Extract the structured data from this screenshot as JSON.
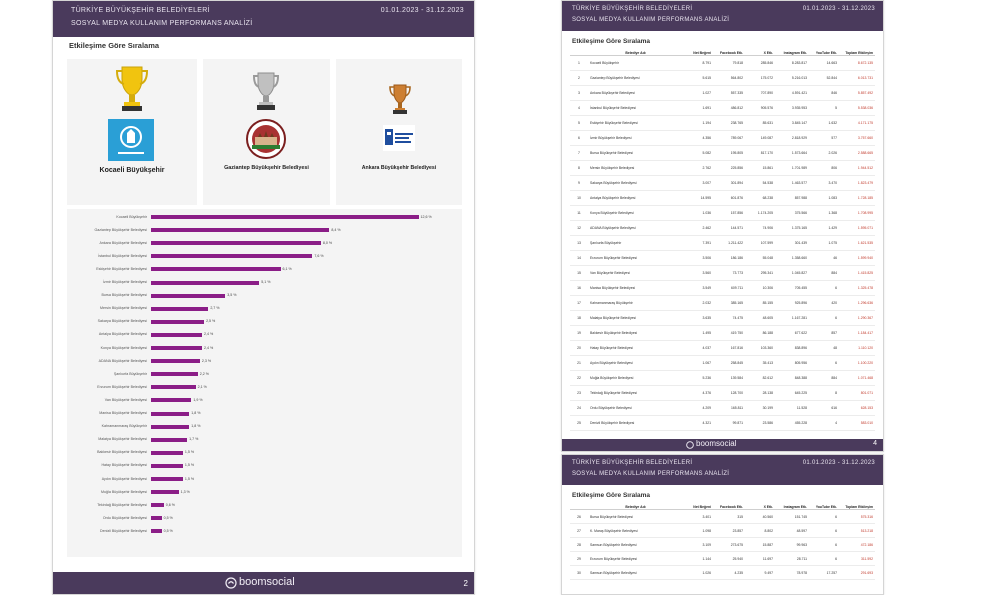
{
  "report": {
    "title": "TÜRKİYE BÜYÜKŞEHİR BELEDİYELERİ",
    "subtitle": "SOSYAL MEDYA KULLANIM PERFORMANS ANALİZİ",
    "date_range": "01.01.2023 - 31.12.2023",
    "section_title": "Etkileşime Göre Sıralama",
    "brand": "boomsocial"
  },
  "left_page": {
    "page_number": "2",
    "podium": [
      {
        "rank": 1,
        "name": "Kocaeli Büyükşehir",
        "trophy": "gold-trophy-icon"
      },
      {
        "rank": 2,
        "name": "Gaziantep Büyükşehir Belediyesi",
        "trophy": "silver-trophy-icon"
      },
      {
        "rank": 3,
        "name": "Ankara Büyükşehir Belediyesi",
        "trophy": "bronze-trophy-icon"
      }
    ]
  },
  "chart_data": {
    "type": "bar",
    "orientation": "horizontal",
    "title": "Etkileşime Göre Sıralama",
    "categories": [
      "Kocaeli Büyükşehir",
      "Gaziantep Büyükşehir Belediyesi",
      "Ankara Büyükşehir Belediyesi",
      "İstanbul Büyükşehir Belediyesi",
      "Eskişehir Büyükşehir Belediyesi",
      "İzmir Büyükşehir Belediyesi",
      "Bursa Büyükşehir Belediyesi",
      "Mersin Büyükşehir Belediyesi",
      "Sakarya Büyükşehir Belediyesi",
      "Antalya Büyükşehir Belediyesi",
      "Konya Büyükşehir Belediyesi",
      "ADANA Büyükşehir Belediyesi",
      "Şanlıurfa Büyükşehir",
      "Erzurum Büyükşehir Belediyesi",
      "Van Büyükşehir Belediyesi",
      "Manisa Büyükşehir Belediyesi",
      "Kahramanmaraş Büyükşehir",
      "Malatya Büyükşehir Belediyesi",
      "Balıkesir Büyükşehir Belediyesi",
      "Hatay Büyükşehir Belediyesi",
      "Aydın Büyükşehir Belediyesi",
      "Muğla Büyükşehir Belediyesi",
      "Tekirdağ Büyükşehir Belediyesi",
      "Ordu Büyükşehir Belediyesi",
      "Denizli Büyükşehir Belediyesi"
    ],
    "values": [
      12.6,
      8.4,
      8.0,
      7.6,
      6.1,
      5.1,
      3.5,
      2.7,
      2.5,
      2.4,
      2.4,
      2.3,
      2.2,
      2.1,
      1.9,
      1.8,
      1.8,
      1.7,
      1.5,
      1.5,
      1.5,
      1.3,
      0.6,
      0.5,
      0.5
    ],
    "value_labels": [
      "12,6 %",
      "8,4 %",
      "8,0 %",
      "7,6 %",
      "6,1 %",
      "5,1 %",
      "3,5 %",
      "2,7 %",
      "2,5 %",
      "2,4 %",
      "2,4 %",
      "2,3 %",
      "2,2 %",
      "2,1 %",
      "1,9 %",
      "1,8 %",
      "1,8 %",
      "1,7 %",
      "1,5 %",
      "1,5 %",
      "1,5 %",
      "1,3 %",
      "0,6 %",
      "0,5 %",
      "0,5 %"
    ],
    "xlim": [
      0,
      13
    ],
    "bar_color": "#8b1e87",
    "grid": false
  },
  "right_page_top": {
    "page_number": "4",
    "columns": [
      "",
      "Belediye Adı",
      "Net Beğeni",
      "Facebook Etk.",
      "X Etk.",
      "Instagram Etk.",
      "YouTube Etk.",
      "Toplam Etkileşim"
    ],
    "rows": [
      [
        "1",
        "Kocaeli Büyükşehir",
        "8.791",
        "79.818",
        "285.846",
        "8.283.817",
        "14.663",
        "8.672.135"
      ],
      [
        "2",
        "Gaziantep Büyükşehir Belediyesi",
        "5.615",
        "564.802",
        "175.072",
        "5.216.013",
        "52.844",
        "6.013.731"
      ],
      [
        "3",
        "Ankara Büyükşehir Belediyesi",
        "1.027",
        "557.335",
        "707.890",
        "4.591.421",
        "846",
        "5.857.492"
      ],
      [
        "4",
        "İstanbul Büyükşehir Belediyesi",
        "1.691",
        "486.812",
        "905.576",
        "3.935.953",
        "5",
        "5.538.036"
      ],
      [
        "5",
        "Eskişehir Büyükşehir Belediyesi",
        "1.194",
        "238.765",
        "85.631",
        "3.845.147",
        "1.632",
        "4.171.175"
      ],
      [
        "6",
        "İzmir Büyükşehir Belediyesi",
        "4.356",
        "789.067",
        "149.087",
        "2.818.929",
        "577",
        "3.757.660"
      ],
      [
        "7",
        "Bursa Büyükşehir Belediyesi",
        "5.082",
        "195.805",
        "817.170",
        "1.573.664",
        "2.026",
        "2.588.665"
      ],
      [
        "8",
        "Mersin Büyükşehir Belediyesi",
        "2.762",
        "225.856",
        "15.861",
        "1.701.989",
        "806",
        "1.944.512"
      ],
      [
        "9",
        "Sakarya Büyükşehir Belediyesi",
        "3.007",
        "301.894",
        "54.538",
        "1.463.577",
        "3.470",
        "1.823.479"
      ],
      [
        "10",
        "Antalya Büyükşehir Belediyesi",
        "14.595",
        "601.876",
        "68.238",
        "857.988",
        "1.083",
        "1.728.185"
      ],
      [
        "11",
        "Konya Büyükşehir Belediyesi",
        "1.036",
        "157.856",
        "1.174.205",
        "375.566",
        "1.368",
        "1.708.995"
      ],
      [
        "12",
        "ADANA Büyükşehir Belediyesi",
        "2.462",
        "144.571",
        "74.906",
        "1.375.165",
        "1.429",
        "1.595.071"
      ],
      [
        "13",
        "Şanlıurfa Büyükşehir",
        "7.391",
        "1.211.422",
        "107.599",
        "301.439",
        "1.075",
        "1.621.535"
      ],
      [
        "14",
        "Erzurum Büyükşehir Belediyesi",
        "3.506",
        "186.186",
        "55.048",
        "1.358.660",
        "46",
        "1.599.940"
      ],
      [
        "15",
        "Van Büyükşehir Belediyesi",
        "3.560",
        "73.773",
        "295.341",
        "1.045.827",
        "884",
        "1.415.825"
      ],
      [
        "16",
        "Manisa Büyükşehir Belediyesi",
        "3.549",
        "609.711",
        "10.306",
        "705.455",
        "6",
        "1.325.478"
      ],
      [
        "17",
        "Kahramanmaraş Büyükşehir",
        "2.032",
        "385.165",
        "85.155",
        "925.896",
        "420",
        "1.296.636"
      ],
      [
        "18",
        "Malatya Büyükşehir Belediyesi",
        "3.635",
        "74.475",
        "48.605",
        "1.167.281",
        "6",
        "1.290.367"
      ],
      [
        "19",
        "Balıkesir Büyükşehir Belediyesi",
        "1.495",
        "419.750",
        "86.188",
        "677.622",
        "857",
        "1.184.417"
      ],
      [
        "20",
        "Hatay Büyükşehir Belediyesi",
        "4.037",
        "167.816",
        "103.360",
        "838.896",
        "48",
        "1.110.120"
      ],
      [
        "21",
        "Aydın Büyükşehir Belediyesi",
        "1.067",
        "258.845",
        "35.413",
        "805.956",
        "6",
        "1.100.220"
      ],
      [
        "22",
        "Muğla Büyükşehir Belediyesi",
        "5.236",
        "139.584",
        "82.612",
        "848.388",
        "884",
        "1.071.468"
      ],
      [
        "23",
        "Tekirdağ Büyükşehir Belediyesi",
        "4.376",
        "128.700",
        "28.138",
        "645.225",
        "8",
        "801.071"
      ],
      [
        "24",
        "Ordu Büyükşehir Belediyesi",
        "4.209",
        "165.811",
        "30.199",
        "11.528",
        "616",
        "628.153"
      ],
      [
        "25",
        "Denizli Büyükşehir Belediyesi",
        "4.321",
        "99.871",
        "23.586",
        "455.228",
        "4",
        "583.010"
      ]
    ]
  },
  "right_page_bottom": {
    "columns": [
      "",
      "Belediye Adı",
      "Net Beğeni",
      "Facebook Etk.",
      "X Etk.",
      "Instagram Etk.",
      "YouTube Etk.",
      "Toplam Etkileşim"
    ],
    "rows": [
      [
        "26",
        "Bursa Büyükşehir Belediyesi",
        "3.401",
        "315",
        "40.560",
        "151.745",
        "6",
        "575.316"
      ],
      [
        "27",
        "K. Maraş Büyükşehir Belediyesi",
        "1.098",
        "23.857",
        "8.802",
        "48.597",
        "6",
        "513.218"
      ],
      [
        "28",
        "Samsun Büyükşehir Belediyesi",
        "3.109",
        "273.675",
        "15.887",
        "99.963",
        "6",
        "472.186"
      ],
      [
        "29",
        "Erzurum Büyükşehir Belediyesi",
        "1.144",
        "25.940",
        "11.697",
        "28.711",
        "6",
        "311.592"
      ],
      [
        "30",
        "Samsun Büyükşehir Belediyesi",
        "1.026",
        "4.235",
        "9.497",
        "78.978",
        "17.257",
        "291.693"
      ]
    ]
  }
}
